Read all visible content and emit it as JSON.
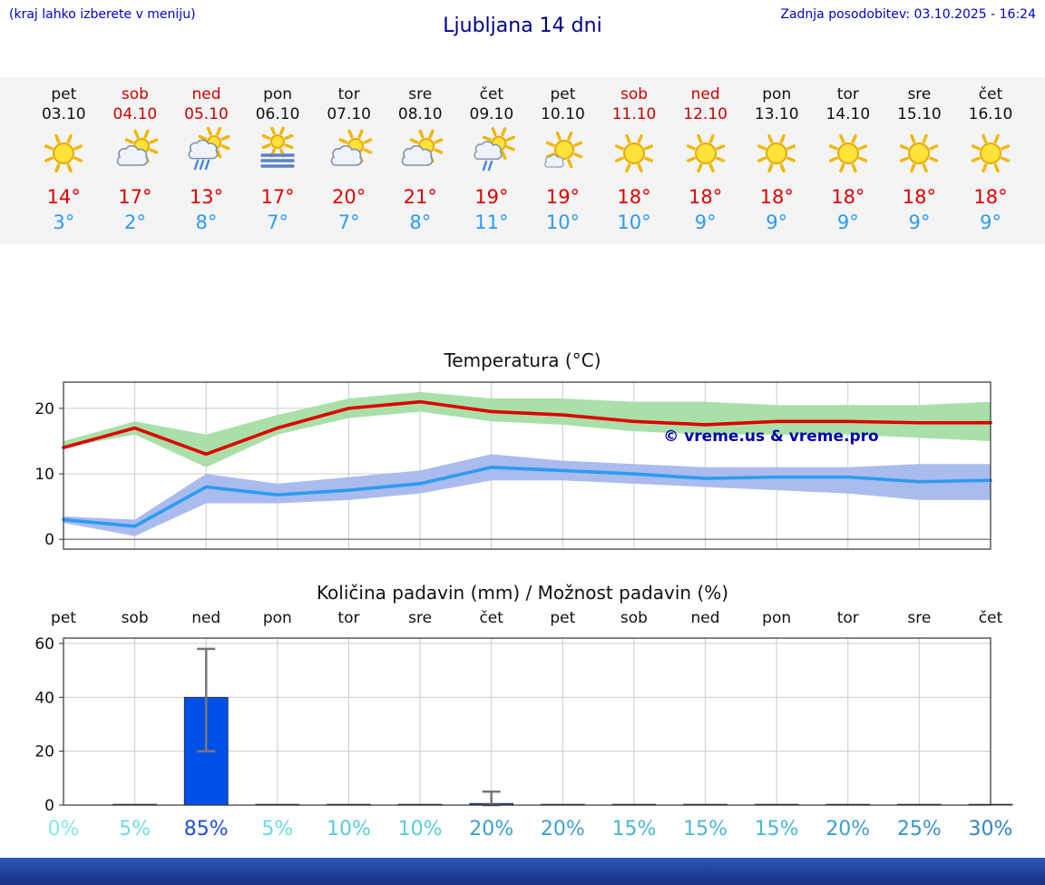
{
  "header": {
    "left_note": "(kraj lahko izberete v meniju)",
    "title": "Ljubljana 14 dni",
    "last_update": "Zadnja posodobitev: 03.10.2025 - 16:24"
  },
  "forecast": {
    "days": [
      {
        "name": "pet",
        "date": "03.10",
        "icon": "sun",
        "high": "14°",
        "low": "3°",
        "weekend": false
      },
      {
        "name": "sob",
        "date": "04.10",
        "icon": "sun-cloud",
        "high": "17°",
        "low": "2°",
        "weekend": true
      },
      {
        "name": "ned",
        "date": "05.10",
        "icon": "rain-sun",
        "high": "13°",
        "low": "8°",
        "weekend": true
      },
      {
        "name": "pon",
        "date": "06.10",
        "icon": "fog",
        "high": "17°",
        "low": "7°",
        "weekend": false
      },
      {
        "name": "tor",
        "date": "07.10",
        "icon": "sun-cloud",
        "high": "20°",
        "low": "7°",
        "weekend": false
      },
      {
        "name": "sre",
        "date": "08.10",
        "icon": "sun-cloud",
        "high": "21°",
        "low": "8°",
        "weekend": false
      },
      {
        "name": "čet",
        "date": "09.10",
        "icon": "sun-rain",
        "high": "19°",
        "low": "11°",
        "weekend": false
      },
      {
        "name": "pet",
        "date": "10.10",
        "icon": "sun-small-cloud",
        "high": "19°",
        "low": "10°",
        "weekend": false
      },
      {
        "name": "sob",
        "date": "11.10",
        "icon": "sun",
        "high": "18°",
        "low": "10°",
        "weekend": true
      },
      {
        "name": "ned",
        "date": "12.10",
        "icon": "sun",
        "high": "18°",
        "low": "9°",
        "weekend": true
      },
      {
        "name": "pon",
        "date": "13.10",
        "icon": "sun",
        "high": "18°",
        "low": "9°",
        "weekend": false
      },
      {
        "name": "tor",
        "date": "14.10",
        "icon": "sun",
        "high": "18°",
        "low": "9°",
        "weekend": false
      },
      {
        "name": "sre",
        "date": "15.10",
        "icon": "sun",
        "high": "18°",
        "low": "9°",
        "weekend": false
      },
      {
        "name": "čet",
        "date": "16.10",
        "icon": "sun",
        "high": "18°",
        "low": "9°",
        "weekend": false
      }
    ]
  },
  "chart_data": [
    {
      "type": "line",
      "title": "Temperatura (°C)",
      "categories": [
        "pet",
        "sob",
        "ned",
        "pon",
        "tor",
        "sre",
        "čet",
        "pet",
        "sob",
        "ned",
        "pon",
        "tor",
        "sre",
        "čet"
      ],
      "series": [
        {
          "name": "max-temperature",
          "color": "#dd0000",
          "values": [
            14,
            17,
            13,
            17,
            20,
            21,
            19.5,
            19,
            18,
            17.5,
            18,
            18,
            17.8,
            17.8
          ]
        },
        {
          "name": "min-temperature",
          "color": "#2d9bf0",
          "values": [
            3,
            2,
            8,
            6.8,
            7.5,
            8.5,
            11,
            10.5,
            10,
            9.3,
            9.5,
            9.5,
            8.8,
            9
          ]
        }
      ],
      "bands": [
        {
          "name": "max-range",
          "color": "#a9e0a9",
          "upper": [
            15,
            18,
            16,
            19,
            21.5,
            22.5,
            21.5,
            21.5,
            21,
            21,
            20.5,
            20.5,
            20.5,
            21
          ],
          "lower": [
            14,
            16,
            11,
            16,
            18.5,
            19.5,
            18,
            17.5,
            16.5,
            16,
            16,
            16,
            15.5,
            15
          ]
        },
        {
          "name": "min-range",
          "color": "#aabbee",
          "upper": [
            3.5,
            3,
            10,
            8.5,
            9.5,
            10.5,
            13,
            12,
            11.5,
            11,
            11,
            11,
            11.5,
            11.5
          ],
          "lower": [
            2.5,
            0.5,
            5.5,
            5.5,
            6,
            7,
            9,
            9,
            8.5,
            8,
            7.5,
            7,
            6,
            6
          ]
        }
      ],
      "ylim": [
        -1.5,
        24
      ],
      "yticks": [
        0,
        10,
        20
      ],
      "grid": true,
      "watermark": "© vreme.us & vreme.pro",
      "watermark_color": "#0000aa"
    },
    {
      "type": "bar",
      "title": "Količina padavin (mm) / Možnost padavin (%)",
      "categories": [
        "pet",
        "sob",
        "ned",
        "pon",
        "tor",
        "sre",
        "čet",
        "pet",
        "sob",
        "ned",
        "pon",
        "tor",
        "sre",
        "čet"
      ],
      "values": [
        0,
        0.3,
        40,
        0.3,
        0.3,
        0.3,
        0.6,
        0.3,
        0.3,
        0.3,
        0.3,
        0.3,
        0.3,
        0.3
      ],
      "error_low": [
        0,
        0,
        20,
        0,
        0,
        0,
        0,
        0,
        0,
        0,
        0,
        0,
        0,
        0
      ],
      "error_high": [
        0,
        0,
        58,
        0,
        0,
        0,
        5,
        0,
        0,
        0,
        0,
        0,
        0,
        0
      ],
      "probabilities": [
        "0%",
        "5%",
        "85%",
        "5%",
        "10%",
        "10%",
        "20%",
        "20%",
        "15%",
        "15%",
        "15%",
        "20%",
        "25%",
        "30%"
      ],
      "prob_colors": [
        "#85e6e8",
        "#6cdce2",
        "#1d4ed8",
        "#6cdce2",
        "#59cdda",
        "#59cdda",
        "#3e9ed2",
        "#3e9ed2",
        "#4bb6d6",
        "#4bb6d6",
        "#4bb6d6",
        "#3e9ed2",
        "#3893cd",
        "#3285c9"
      ],
      "bar_color": "#0050e8",
      "error_color": "#777777",
      "ylim": [
        0,
        62
      ],
      "yticks": [
        0,
        20,
        40,
        60
      ],
      "grid": true
    }
  ],
  "footer": {
    "color": "#1c3f9e"
  }
}
